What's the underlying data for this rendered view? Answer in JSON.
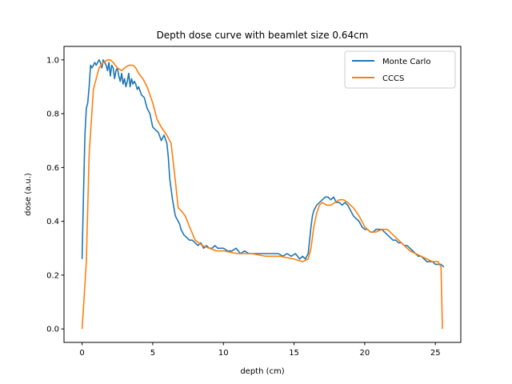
{
  "chart_data": {
    "type": "line",
    "title": "Depth dose curve with beamlet size 0.64cm",
    "xlabel": "depth (cm)",
    "ylabel": "dose (a.u.)",
    "xlim": [
      -1.28,
      26.8
    ],
    "ylim": [
      -0.05,
      1.05
    ],
    "xticks": [
      0,
      5,
      10,
      15,
      20,
      25
    ],
    "yticks": [
      0.0,
      0.2,
      0.4,
      0.6,
      0.8,
      1.0
    ],
    "xtick_labels": [
      "0",
      "5",
      "10",
      "15",
      "20",
      "25"
    ],
    "ytick_labels": [
      "0.0",
      "0.2",
      "0.4",
      "0.6",
      "0.8",
      "1.0"
    ],
    "grid": false,
    "legend_position": "top-right",
    "series": [
      {
        "name": "Monte Carlo",
        "color": "#1f77b4",
        "x": [
          0.0,
          0.1,
          0.2,
          0.3,
          0.4,
          0.5,
          0.6,
          0.7,
          0.8,
          0.9,
          1.0,
          1.1,
          1.2,
          1.3,
          1.4,
          1.5,
          1.6,
          1.7,
          1.8,
          1.9,
          2.0,
          2.1,
          2.2,
          2.3,
          2.4,
          2.5,
          2.6,
          2.7,
          2.8,
          2.9,
          3.0,
          3.1,
          3.2,
          3.3,
          3.4,
          3.5,
          3.6,
          3.7,
          3.8,
          3.9,
          4.0,
          4.2,
          4.4,
          4.6,
          4.8,
          5.0,
          5.2,
          5.4,
          5.6,
          5.8,
          6.0,
          6.1,
          6.2,
          6.3,
          6.4,
          6.5,
          6.6,
          6.7,
          6.8,
          6.9,
          7.0,
          7.2,
          7.4,
          7.6,
          7.8,
          8.0,
          8.2,
          8.4,
          8.6,
          8.8,
          9.0,
          9.2,
          9.4,
          9.6,
          9.8,
          10.0,
          10.3,
          10.6,
          10.9,
          11.2,
          11.5,
          11.8,
          12.1,
          12.4,
          12.7,
          13.0,
          13.3,
          13.6,
          13.9,
          14.2,
          14.5,
          14.8,
          15.1,
          15.4,
          15.6,
          15.8,
          16.0,
          16.1,
          16.2,
          16.3,
          16.4,
          16.5,
          16.6,
          16.8,
          17.0,
          17.2,
          17.4,
          17.6,
          17.8,
          18.0,
          18.2,
          18.4,
          18.6,
          18.8,
          19.0,
          19.2,
          19.4,
          19.6,
          19.8,
          20.0,
          20.2,
          20.4,
          20.6,
          20.8,
          21.0,
          21.2,
          21.4,
          21.6,
          21.8,
          22.0,
          22.2,
          22.4,
          22.6,
          22.8,
          23.0,
          23.2,
          23.4,
          23.6,
          23.8,
          24.0,
          24.2,
          24.4,
          24.6,
          24.8,
          25.0,
          25.2,
          25.4,
          25.6
        ],
        "y": [
          0.26,
          0.5,
          0.72,
          0.82,
          0.84,
          0.9,
          0.98,
          0.97,
          0.98,
          0.99,
          0.98,
          0.99,
          1.0,
          0.99,
          0.97,
          1.0,
          0.99,
          0.98,
          0.96,
          0.99,
          0.94,
          0.98,
          0.97,
          0.93,
          0.96,
          0.97,
          0.94,
          0.92,
          0.95,
          0.91,
          0.93,
          0.9,
          0.92,
          0.95,
          0.9,
          0.93,
          0.91,
          0.92,
          0.91,
          0.89,
          0.9,
          0.87,
          0.86,
          0.82,
          0.8,
          0.75,
          0.74,
          0.73,
          0.7,
          0.72,
          0.69,
          0.64,
          0.56,
          0.52,
          0.48,
          0.45,
          0.42,
          0.41,
          0.4,
          0.39,
          0.37,
          0.35,
          0.34,
          0.33,
          0.33,
          0.32,
          0.31,
          0.32,
          0.3,
          0.31,
          0.3,
          0.3,
          0.31,
          0.3,
          0.3,
          0.3,
          0.29,
          0.29,
          0.3,
          0.28,
          0.29,
          0.28,
          0.28,
          0.28,
          0.28,
          0.28,
          0.28,
          0.28,
          0.28,
          0.27,
          0.28,
          0.27,
          0.28,
          0.26,
          0.27,
          0.26,
          0.28,
          0.33,
          0.38,
          0.42,
          0.44,
          0.45,
          0.46,
          0.47,
          0.48,
          0.49,
          0.49,
          0.48,
          0.49,
          0.47,
          0.47,
          0.46,
          0.47,
          0.46,
          0.44,
          0.42,
          0.41,
          0.4,
          0.38,
          0.37,
          0.37,
          0.36,
          0.36,
          0.37,
          0.37,
          0.37,
          0.36,
          0.35,
          0.34,
          0.33,
          0.33,
          0.32,
          0.32,
          0.31,
          0.31,
          0.3,
          0.29,
          0.28,
          0.27,
          0.27,
          0.26,
          0.25,
          0.25,
          0.25,
          0.24,
          0.24,
          0.24,
          0.23
        ]
      },
      {
        "name": "CCCS",
        "color": "#ff7f0e",
        "x": [
          0.0,
          0.1,
          0.3,
          0.5,
          0.8,
          1.2,
          1.5,
          1.8,
          2.0,
          2.2,
          2.5,
          2.8,
          3.0,
          3.3,
          3.6,
          3.8,
          4.0,
          4.3,
          4.6,
          5.0,
          5.3,
          5.6,
          6.0,
          6.3,
          6.6,
          6.8,
          7.0,
          7.3,
          7.6,
          8.0,
          8.5,
          9.0,
          9.5,
          10.0,
          11.0,
          12.0,
          13.0,
          14.0,
          15.0,
          15.6,
          16.0,
          16.2,
          16.4,
          16.6,
          16.8,
          17.0,
          17.3,
          17.6,
          17.9,
          18.2,
          18.5,
          18.8,
          19.2,
          19.6,
          20.0,
          20.4,
          20.8,
          21.2,
          21.6,
          22.0,
          22.4,
          22.8,
          23.2,
          23.6,
          24.0,
          24.4,
          24.8,
          25.2,
          25.4,
          25.5
        ],
        "y": [
          0.0,
          0.08,
          0.25,
          0.65,
          0.89,
          0.97,
          0.99,
          1.0,
          1.0,
          0.99,
          0.97,
          0.96,
          0.97,
          0.98,
          0.98,
          0.97,
          0.95,
          0.93,
          0.9,
          0.84,
          0.78,
          0.75,
          0.72,
          0.69,
          0.55,
          0.45,
          0.44,
          0.42,
          0.38,
          0.33,
          0.31,
          0.3,
          0.29,
          0.29,
          0.28,
          0.28,
          0.27,
          0.27,
          0.26,
          0.25,
          0.26,
          0.3,
          0.38,
          0.43,
          0.46,
          0.47,
          0.46,
          0.46,
          0.47,
          0.48,
          0.48,
          0.47,
          0.45,
          0.42,
          0.38,
          0.36,
          0.36,
          0.37,
          0.37,
          0.35,
          0.33,
          0.31,
          0.29,
          0.28,
          0.27,
          0.26,
          0.25,
          0.25,
          0.23,
          0.0
        ]
      }
    ]
  }
}
